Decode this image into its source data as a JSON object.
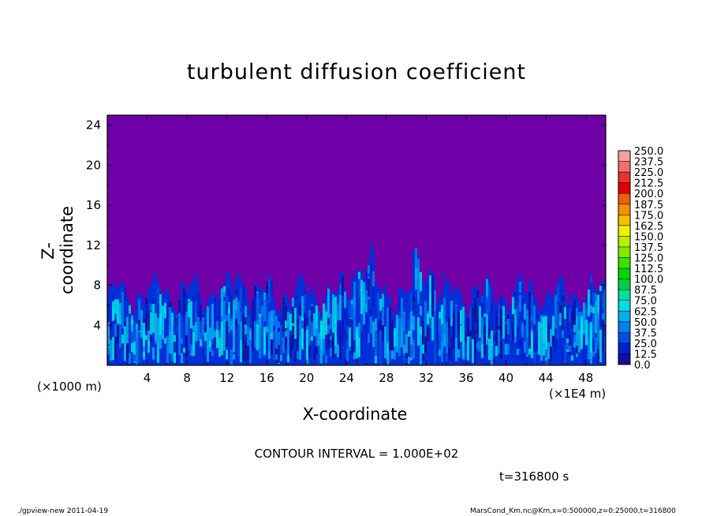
{
  "title": "turbulent diffusion coefficient",
  "chart_data": {
    "type": "heatmap",
    "title": "turbulent diffusion coefficient",
    "xlabel": "X-coordinate",
    "ylabel": "Z-coordinate",
    "x_unit_left": "(×1000 m)",
    "x_unit_right": "(×1E4 m)",
    "xlim": [
      0,
      50
    ],
    "ylim": [
      0,
      25
    ],
    "x_ticks": [
      "4",
      "8",
      "12",
      "16",
      "20",
      "24",
      "28",
      "32",
      "36",
      "40",
      "44",
      "48"
    ],
    "y_ticks": [
      "4",
      "8",
      "12",
      "16",
      "20",
      "24"
    ],
    "colorbar": {
      "levels": [
        "250.0",
        "237.5",
        "225.0",
        "212.5",
        "200.0",
        "187.5",
        "175.0",
        "162.5",
        "150.0",
        "137.5",
        "125.0",
        "112.5",
        "100.0",
        "87.5",
        "75.0",
        "62.5",
        "50.0",
        "37.5",
        "25.0",
        "12.5",
        "0.0"
      ],
      "colors": [
        "#f8a0a0",
        "#f07070",
        "#e83030",
        "#e00000",
        "#f06000",
        "#f49000",
        "#f4c000",
        "#f0f000",
        "#b8f000",
        "#80ec00",
        "#40e000",
        "#00d800",
        "#00d040",
        "#00e0a0",
        "#00e0e0",
        "#00b0f0",
        "#0080f0",
        "#0050e0",
        "#0020d0",
        "#1010a0",
        "#7000a8"
      ],
      "background": "#7000a8"
    }
  },
  "contour_interval": "CONTOUR INTERVAL = 1.000E+02",
  "time_label": "t=316800 s",
  "footer_left": "./gpview-new   2011-04-19",
  "footer_right": "MarsCond_Km.nc@Km,x=0:500000,z=0:25000,t=316800"
}
